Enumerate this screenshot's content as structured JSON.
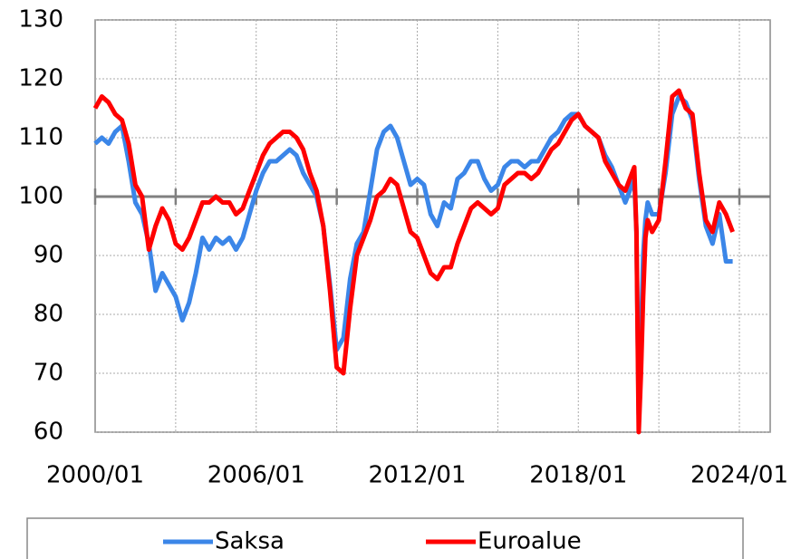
{
  "chart_data": {
    "type": "line",
    "x": [
      "2000/01",
      "2000/04",
      "2000/07",
      "2000/10",
      "2001/01",
      "2001/04",
      "2001/07",
      "2001/10",
      "2002/01",
      "2002/04",
      "2002/07",
      "2002/10",
      "2003/01",
      "2003/04",
      "2003/07",
      "2003/10",
      "2004/01",
      "2004/04",
      "2004/07",
      "2004/10",
      "2005/01",
      "2005/04",
      "2005/07",
      "2005/10",
      "2006/01",
      "2006/04",
      "2006/07",
      "2006/10",
      "2007/01",
      "2007/04",
      "2007/07",
      "2007/10",
      "2008/01",
      "2008/04",
      "2008/07",
      "2008/10",
      "2009/01",
      "2009/04",
      "2009/07",
      "2009/10",
      "2010/01",
      "2010/04",
      "2010/07",
      "2010/10",
      "2011/01",
      "2011/04",
      "2011/07",
      "2011/10",
      "2012/01",
      "2012/04",
      "2012/07",
      "2012/10",
      "2013/01",
      "2013/04",
      "2013/07",
      "2013/10",
      "2014/01",
      "2014/04",
      "2014/07",
      "2014/10",
      "2015/01",
      "2015/04",
      "2015/07",
      "2015/10",
      "2016/01",
      "2016/04",
      "2016/07",
      "2016/10",
      "2017/01",
      "2017/04",
      "2017/07",
      "2017/10",
      "2018/01",
      "2018/04",
      "2018/07",
      "2018/10",
      "2019/01",
      "2019/04",
      "2019/07",
      "2019/10",
      "2020/01",
      "2020/02",
      "2020/03",
      "2020/04",
      "2020/05",
      "2020/06",
      "2020/07",
      "2020/08",
      "2020/10",
      "2021/01",
      "2021/04",
      "2021/07",
      "2021/10",
      "2022/01",
      "2022/04",
      "2022/07",
      "2022/10",
      "2023/01",
      "2023/04",
      "2023/07",
      "2023/10"
    ],
    "series": [
      {
        "name": "Saksa",
        "color": "#3b86e8",
        "values": [
          109,
          110,
          109,
          111,
          112,
          106,
          99,
          97,
          92,
          84,
          87,
          85,
          83,
          79,
          82,
          87,
          93,
          91,
          93,
          92,
          93,
          91,
          93,
          97,
          101,
          104,
          106,
          106,
          107,
          108,
          107,
          104,
          102,
          100,
          95,
          85,
          74,
          76,
          86,
          92,
          94,
          101,
          108,
          111,
          112,
          110,
          106,
          102,
          103,
          102,
          97,
          95,
          99,
          98,
          103,
          104,
          106,
          106,
          103,
          101,
          102,
          105,
          106,
          106,
          105,
          106,
          106,
          108,
          110,
          111,
          113,
          114,
          114,
          112,
          111,
          110,
          107,
          105,
          102,
          99,
          102,
          103,
          94,
          63,
          75,
          90,
          96,
          99,
          97,
          97,
          104,
          114,
          117,
          116,
          113,
          103,
          95,
          92,
          97,
          89,
          89
        ]
      },
      {
        "name": "Euroalue",
        "color": "#ff0000",
        "values": [
          115,
          117,
          116,
          114,
          113,
          109,
          102,
          100,
          91,
          95,
          98,
          96,
          92,
          91,
          93,
          96,
          99,
          99,
          100,
          99,
          99,
          97,
          98,
          101,
          104,
          107,
          109,
          110,
          111,
          111,
          110,
          108,
          104,
          101,
          95,
          84,
          71,
          70,
          81,
          90,
          93,
          96,
          100,
          101,
          103,
          102,
          98,
          94,
          93,
          90,
          87,
          86,
          88,
          88,
          92,
          95,
          98,
          99,
          98,
          97,
          98,
          102,
          103,
          104,
          104,
          103,
          104,
          106,
          108,
          109,
          111,
          113,
          114,
          112,
          111,
          110,
          106,
          104,
          102,
          101,
          104,
          105,
          94,
          60,
          70,
          83,
          93,
          96,
          94,
          96,
          106,
          117,
          118,
          115,
          114,
          104,
          96,
          94,
          99,
          97,
          94
        ]
      }
    ],
    "xlim": [
      "2000/01",
      "2024/01"
    ],
    "xticks": [
      "2000/01",
      "2006/01",
      "2012/01",
      "2018/01",
      "2024/01"
    ],
    "ylim": [
      60,
      130
    ],
    "yticks": [
      60,
      70,
      80,
      90,
      100,
      110,
      120,
      130
    ],
    "hline": 100,
    "grid": true,
    "legend": "bottom"
  }
}
